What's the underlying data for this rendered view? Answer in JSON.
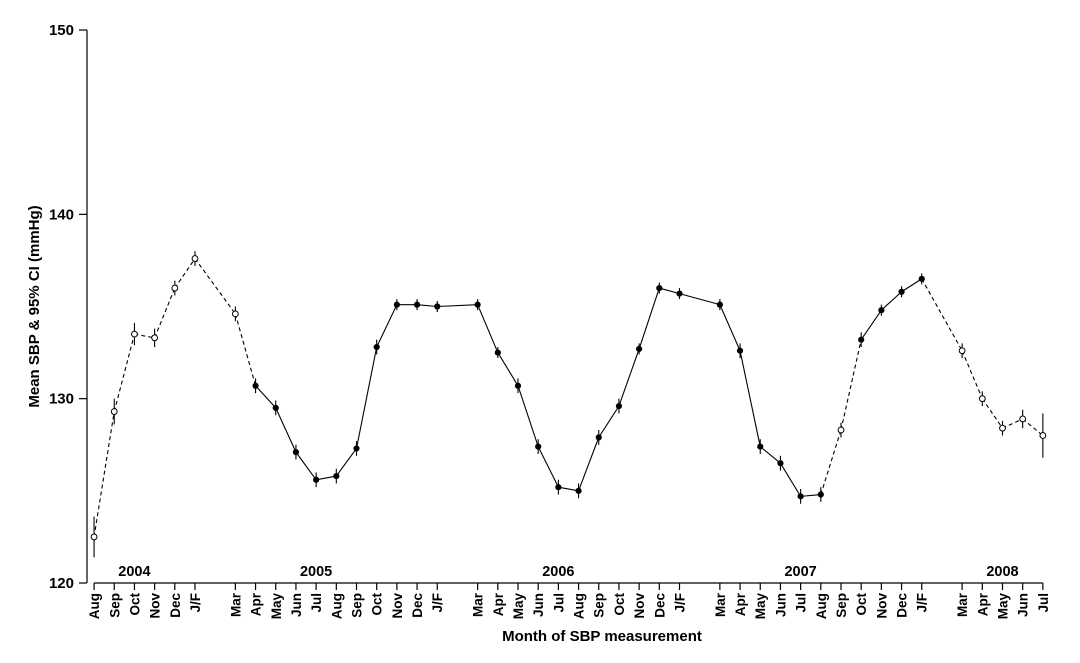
{
  "chart_data": {
    "type": "line",
    "title": "",
    "xlabel": "Month of SBP measurement",
    "ylabel": "Mean SBP & 95% CI (mmHg)",
    "ylim": [
      120,
      150
    ],
    "yticks": [
      120,
      130,
      140,
      150
    ],
    "grid": false,
    "legend": "none",
    "categories": [
      "Aug",
      "Sep",
      "Oct",
      "Nov",
      "Dec",
      "J/F",
      "Mar",
      "Apr",
      "May",
      "Jun",
      "Jul",
      "Aug",
      "Sep",
      "Oct",
      "Nov",
      "Dec",
      "J/F",
      "Mar",
      "Apr",
      "May",
      "Jun",
      "Jul",
      "Aug",
      "Sep",
      "Oct",
      "Nov",
      "Dec",
      "J/F",
      "Mar",
      "Apr",
      "May",
      "Jun",
      "Jul",
      "Aug",
      "Sep",
      "Oct",
      "Nov",
      "Dec",
      "J/F",
      "Mar",
      "Apr",
      "May",
      "Jun",
      "Jul"
    ],
    "x_positions": [
      0,
      1,
      2,
      3,
      4,
      5,
      7,
      8,
      9,
      10,
      11,
      12,
      13,
      14,
      15,
      16,
      17,
      19,
      20,
      21,
      22,
      23,
      24,
      25,
      26,
      27,
      28,
      29,
      31,
      32,
      33,
      34,
      35,
      36,
      37,
      38,
      39,
      40,
      41,
      43,
      44,
      45,
      46,
      47
    ],
    "x_range": [
      -0.35,
      47.7
    ],
    "year_labels": [
      {
        "text": "2004",
        "pos": 2
      },
      {
        "text": "2005",
        "pos": 11
      },
      {
        "text": "2006",
        "pos": 23
      },
      {
        "text": "2007",
        "pos": 35
      },
      {
        "text": "2008",
        "pos": 45
      }
    ],
    "values": [
      122.5,
      129.3,
      133.5,
      133.3,
      136.0,
      137.6,
      134.6,
      130.7,
      129.5,
      127.1,
      125.6,
      125.8,
      127.3,
      132.8,
      135.1,
      135.1,
      135.0,
      135.1,
      132.5,
      130.7,
      127.4,
      125.2,
      125.0,
      127.9,
      129.6,
      132.7,
      136.0,
      135.7,
      135.1,
      132.6,
      127.4,
      126.5,
      124.7,
      124.8,
      128.3,
      133.2,
      134.8,
      135.8,
      136.5,
      132.6,
      130.0,
      128.4,
      128.9,
      128.0
    ],
    "ci_lower": [
      121.4,
      128.6,
      132.9,
      132.8,
      135.6,
      137.2,
      134.2,
      130.3,
      129.1,
      126.7,
      125.2,
      125.4,
      126.9,
      132.4,
      134.8,
      134.8,
      134.7,
      134.8,
      132.2,
      130.3,
      127.0,
      124.8,
      124.6,
      127.5,
      129.2,
      132.4,
      135.7,
      135.4,
      134.8,
      132.2,
      127.0,
      126.1,
      124.3,
      124.4,
      127.9,
      132.8,
      134.5,
      135.5,
      136.2,
      132.2,
      129.6,
      128.0,
      128.4,
      126.8
    ],
    "ci_upper": [
      123.6,
      130.0,
      134.1,
      133.8,
      136.4,
      138.0,
      135.0,
      131.1,
      129.9,
      127.5,
      126.0,
      126.2,
      127.7,
      133.2,
      135.4,
      135.4,
      135.3,
      135.4,
      132.8,
      131.1,
      127.8,
      125.6,
      125.4,
      128.3,
      130.0,
      133.0,
      136.3,
      136.0,
      135.4,
      133.0,
      127.8,
      126.9,
      125.1,
      125.2,
      128.7,
      133.6,
      135.1,
      136.1,
      136.8,
      133.0,
      130.4,
      128.8,
      129.4,
      129.2
    ],
    "marker": [
      "open",
      "open",
      "open",
      "open",
      "open",
      "open",
      "open",
      "filled",
      "filled",
      "filled",
      "filled",
      "filled",
      "filled",
      "filled",
      "filled",
      "filled",
      "filled",
      "filled",
      "filled",
      "filled",
      "filled",
      "filled",
      "filled",
      "filled",
      "filled",
      "filled",
      "filled",
      "filled",
      "filled",
      "filled",
      "filled",
      "filled",
      "filled",
      "filled",
      "open",
      "filled",
      "filled",
      "filled",
      "filled",
      "open",
      "open",
      "open",
      "open",
      "open"
    ],
    "line_style": "dashed for open-marker months, solid for filled-marker months"
  }
}
